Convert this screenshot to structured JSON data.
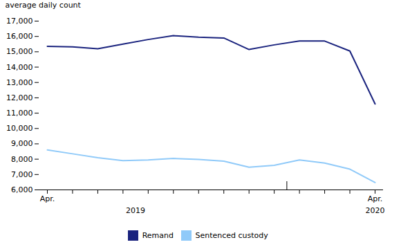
{
  "chart_data": {
    "type": "line",
    "y_label": "average daily count",
    "categories": [
      "Apr.",
      null,
      null,
      null,
      null,
      null,
      null,
      null,
      null,
      null,
      null,
      null,
      null,
      "Apr."
    ],
    "series": [
      {
        "name": "Remand",
        "color": "#1a237e",
        "values": [
          15350,
          15320,
          15200,
          15500,
          15800,
          16050,
          15950,
          15900,
          15150,
          15450,
          15700,
          15700,
          15050,
          11600
        ]
      },
      {
        "name": "Sentenced custody",
        "color": "#90caf9",
        "values": [
          8600,
          8350,
          8100,
          7900,
          7950,
          8050,
          7980,
          7870,
          7480,
          7600,
          7950,
          7750,
          7350,
          6480
        ]
      }
    ],
    "ylim": [
      6000,
      17000
    ],
    "yticks": [
      {
        "value": 6000,
        "label": "6,000"
      },
      {
        "value": 7000,
        "label": "7,000"
      },
      {
        "value": 8000,
        "label": "8,000"
      },
      {
        "value": 9000,
        "label": "9,000"
      },
      {
        "value": 10000,
        "label": "10,000"
      },
      {
        "value": 11000,
        "label": "11,000"
      },
      {
        "value": 12000,
        "label": "12,000"
      },
      {
        "value": 13000,
        "label": "13,000"
      },
      {
        "value": 14000,
        "label": "14,000"
      },
      {
        "value": 15000,
        "label": "15,000"
      },
      {
        "value": 16000,
        "label": "16,000"
      },
      {
        "value": 17000,
        "label": "17,000"
      }
    ],
    "annotations": [
      {
        "text": "2019",
        "x": 3.5
      },
      {
        "text": "2020",
        "x": 13
      }
    ],
    "vertical_lines": [
      9.5
    ],
    "grid": false,
    "legend": "bottom"
  }
}
